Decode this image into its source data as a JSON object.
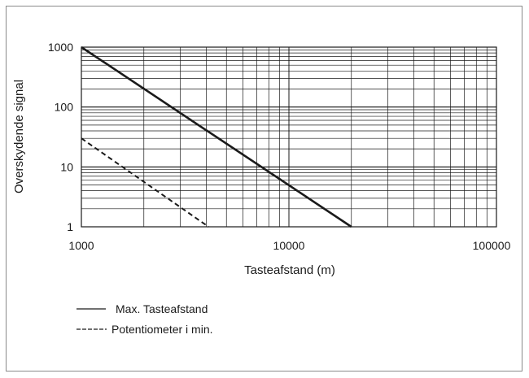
{
  "chart_data": {
    "type": "line",
    "title": "",
    "xlabel": "Tasteafstand (m)",
    "ylabel": "Overskydende signal",
    "xscale": "log",
    "yscale": "log",
    "xlim": [
      1000,
      100000
    ],
    "ylim": [
      1,
      1000
    ],
    "x_ticks": [
      "1000",
      "10000",
      "100000"
    ],
    "y_ticks": [
      "1",
      "10",
      "100",
      "1000"
    ],
    "grid": true,
    "legend_position": "bottom-left",
    "series": [
      {
        "name": "Max. Tasteafstand",
        "style": "solid",
        "x": [
          1000,
          20000
        ],
        "y": [
          1000,
          1
        ]
      },
      {
        "name": "Potentiometer i min.",
        "style": "dashed",
        "x": [
          1000,
          4100
        ],
        "y": [
          30,
          1
        ]
      }
    ]
  }
}
